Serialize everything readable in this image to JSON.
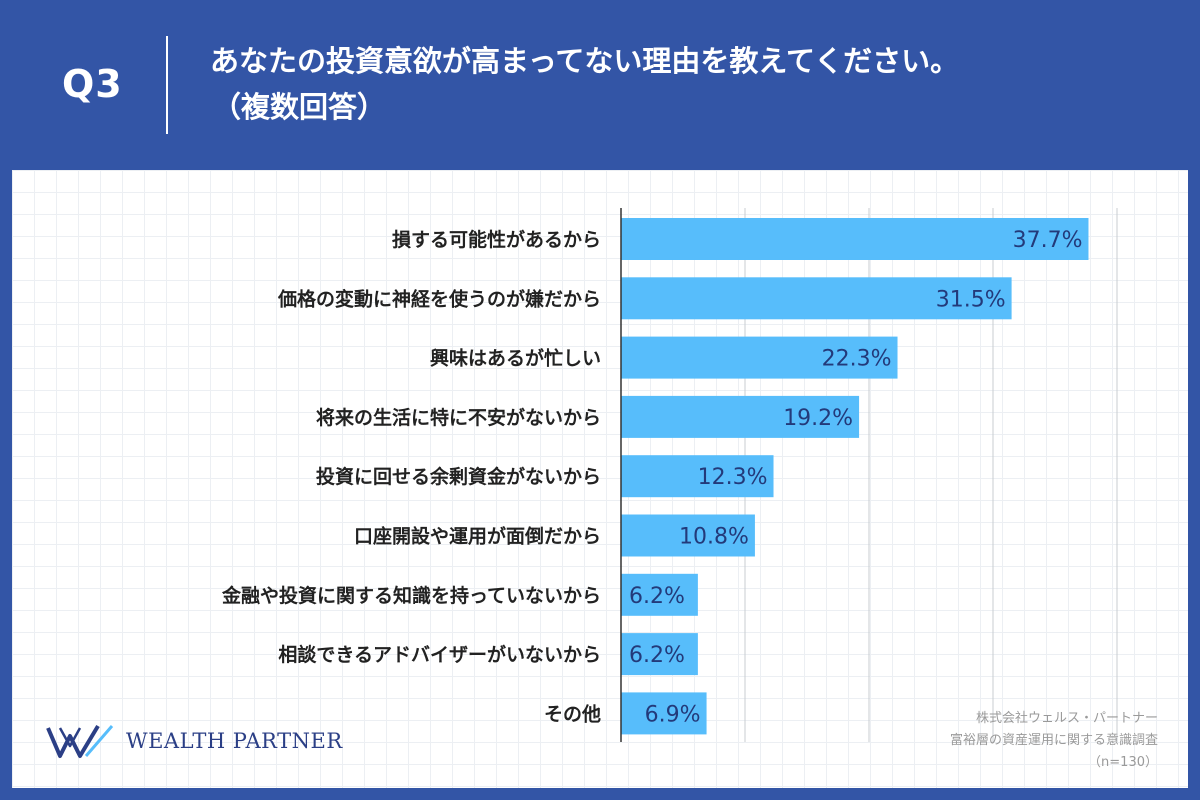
{
  "header": {
    "question_label": "Q3",
    "title": "あなたの投資意欲が高まってない理由を教えてください。",
    "subtitle": "（複数回答）"
  },
  "logo": {
    "name": "WEALTH PARTNER",
    "icon": "wp-logo-icon"
  },
  "source": {
    "company": "株式会社ウェルス・パートナー",
    "survey": "富裕層の資産運用に関する意識調査",
    "sample": "（n=130）"
  },
  "colors": {
    "background": "#3355a6",
    "bar": "#57bdfb",
    "value_text": "#233a7a"
  },
  "chart_data": {
    "type": "bar",
    "orientation": "horizontal",
    "categories": [
      "損する可能性があるから",
      "価格の変動に神経を使うのが嫌だから",
      "興味はあるが忙しい",
      "将来の生活に特に不安がないから",
      "投資に回せる余剰資金がないから",
      "口座開設や運用が面倒だから",
      "金融や投資に関する知識を持っていないから",
      "相談できるアドバイザーがいないから",
      "その他"
    ],
    "values": [
      37.7,
      31.5,
      22.3,
      19.2,
      12.3,
      10.8,
      6.2,
      6.2,
      6.9
    ],
    "value_labels": [
      "37.7%",
      "31.5%",
      "22.3%",
      "19.2%",
      "12.3%",
      "10.8%",
      "6.2%",
      "6.2%",
      "6.9%"
    ],
    "xlim": [
      0,
      40
    ],
    "grid_step": 10,
    "grid": true
  }
}
